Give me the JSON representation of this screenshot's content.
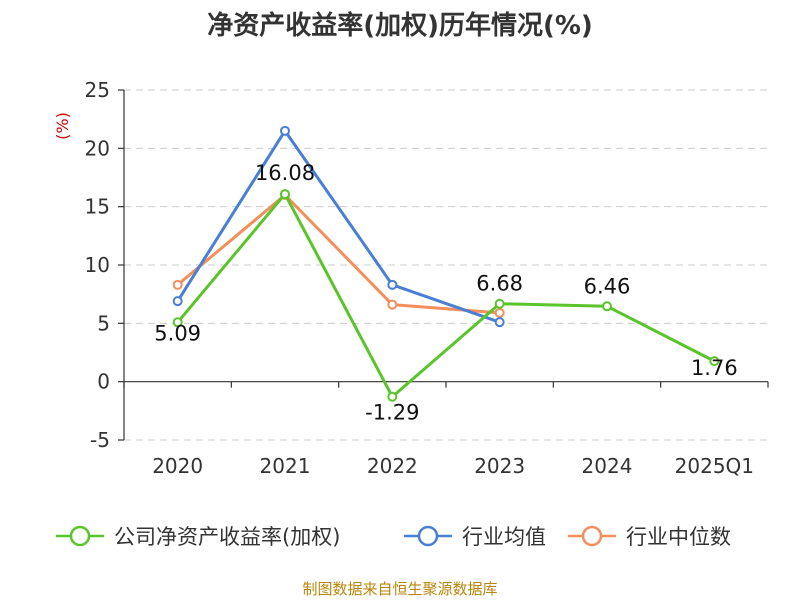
{
  "chart_data": {
    "type": "line",
    "title": "净资产收益率(加权)历年情况(%)",
    "ylabel": "(%)",
    "xlabel": "",
    "categories": [
      "2020",
      "2021",
      "2022",
      "2023",
      "2024",
      "2025Q1"
    ],
    "ylim": [
      -5,
      25
    ],
    "yticks": [
      -5,
      0,
      5,
      10,
      15,
      20,
      25
    ],
    "grid": true,
    "legend_position": "bottom",
    "series": [
      {
        "name": "公司净资产收益率(加权)",
        "color": "#5ac42b",
        "values": [
          5.09,
          16.08,
          -1.29,
          6.68,
          6.46,
          1.76
        ],
        "labels": [
          "5.09",
          "16.08",
          "-1.29",
          "6.68",
          "6.46",
          "1.76"
        ]
      },
      {
        "name": "行业均值",
        "color": "#4a7fd4",
        "values": [
          6.9,
          21.5,
          8.3,
          5.1,
          null,
          null
        ]
      },
      {
        "name": "行业中位数",
        "color": "#f28f5c",
        "values": [
          8.3,
          16.0,
          6.6,
          5.9,
          null,
          null
        ]
      }
    ],
    "source": "制图数据来自恒生聚源数据库"
  }
}
